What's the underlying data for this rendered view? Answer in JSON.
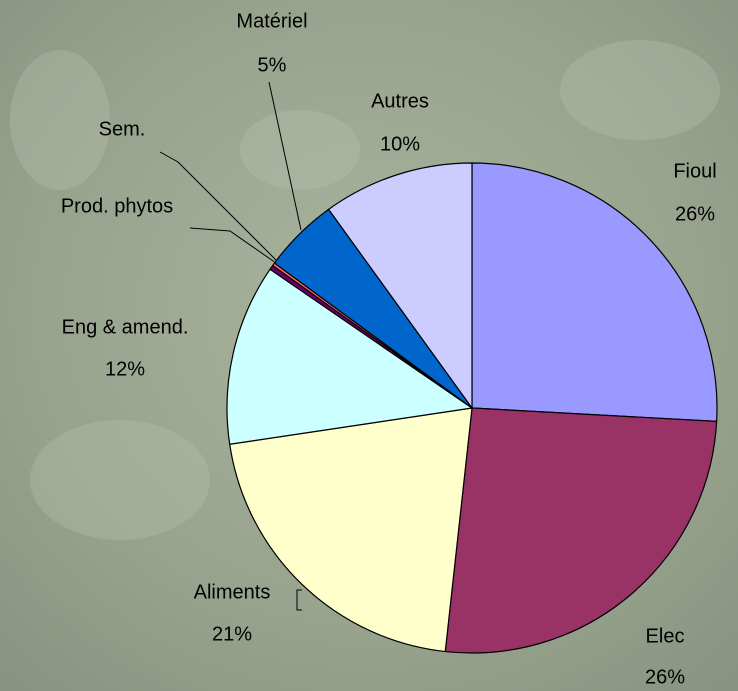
{
  "chart_data": {
    "type": "pie",
    "categories": [
      "Fioul",
      "Elec",
      "Aliments",
      "Eng & amend.",
      "Prod. phytos",
      "Sem.",
      "Matériel",
      "Autres"
    ],
    "values": [
      26,
      26,
      21,
      12,
      0.3,
      0.2,
      5,
      10
    ],
    "value_labels": [
      "26%",
      "26%",
      "21%",
      "12%",
      null,
      null,
      "5%",
      "10%"
    ],
    "colors": [
      "#9999ff",
      "#993366",
      "#ffffcc",
      "#ccffff",
      "#660066",
      "#ff6666",
      "#0066cc",
      "#ccccff"
    ]
  }
}
